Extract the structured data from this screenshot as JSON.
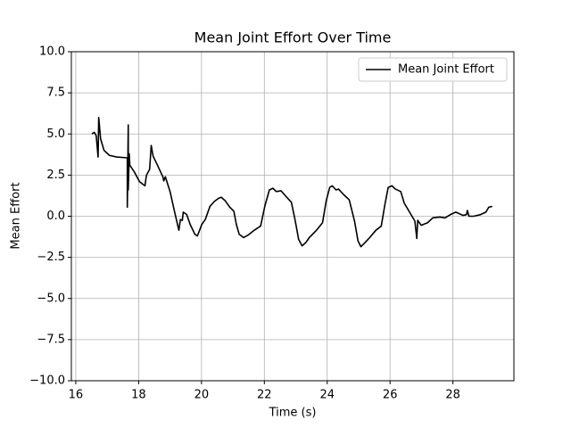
{
  "chart_data": {
    "type": "line",
    "title": "Mean Joint Effort Over Time",
    "xlabel": "Time (s)",
    "ylabel": "Mean Effort",
    "x": [
      16.51,
      16.59,
      16.65,
      16.71,
      16.73,
      16.79,
      16.9,
      17.07,
      17.3,
      17.64,
      17.64,
      17.67,
      17.67,
      17.7,
      17.72,
      17.86,
      18.03,
      18.2,
      18.25,
      18.35,
      18.4,
      18.46,
      18.6,
      18.77,
      18.8,
      18.85,
      19.0,
      19.14,
      19.28,
      19.33,
      19.39,
      19.42,
      19.53,
      19.64,
      19.79,
      19.87,
      20.01,
      20.12,
      20.27,
      20.41,
      20.55,
      20.63,
      20.75,
      20.9,
      21.03,
      21.11,
      21.2,
      21.34,
      21.48,
      21.68,
      21.88,
      22.02,
      22.16,
      22.27,
      22.38,
      22.53,
      22.69,
      22.86,
      22.98,
      23.09,
      23.2,
      23.32,
      23.43,
      23.66,
      23.85,
      23.97,
      24.08,
      24.16,
      24.28,
      24.36,
      24.53,
      24.7,
      24.87,
      24.98,
      25.07,
      25.18,
      25.35,
      25.55,
      25.72,
      25.83,
      25.94,
      26.06,
      26.17,
      26.34,
      26.45,
      26.62,
      26.79,
      26.85,
      26.88,
      26.99,
      27.19,
      27.36,
      27.58,
      27.75,
      27.92,
      28.09,
      28.32,
      28.43,
      28.46,
      28.51,
      28.66,
      28.88,
      29.05,
      29.14,
      29.25
    ],
    "series": [
      {
        "name": "Mean Joint Effort",
        "color": "#000000",
        "values": [
          5.0,
          5.1,
          4.9,
          3.6,
          6.0,
          4.7,
          4.0,
          3.7,
          3.6,
          3.55,
          0.55,
          5.55,
          1.6,
          3.8,
          3.1,
          2.7,
          2.1,
          1.85,
          2.5,
          2.85,
          4.3,
          3.65,
          3.1,
          2.4,
          2.15,
          2.4,
          1.5,
          0.3,
          -0.85,
          -0.2,
          -0.25,
          0.25,
          0.1,
          -0.5,
          -1.1,
          -1.2,
          -0.5,
          -0.2,
          0.6,
          0.9,
          1.1,
          1.15,
          0.95,
          0.55,
          0.3,
          -0.5,
          -1.1,
          -1.3,
          -1.15,
          -0.85,
          -0.6,
          0.65,
          1.6,
          1.7,
          1.5,
          1.55,
          1.2,
          0.85,
          -0.25,
          -1.4,
          -1.8,
          -1.6,
          -1.3,
          -0.85,
          -0.4,
          0.95,
          1.75,
          1.85,
          1.6,
          1.65,
          1.3,
          1.0,
          -0.3,
          -1.5,
          -1.85,
          -1.65,
          -1.3,
          -0.85,
          -0.6,
          0.65,
          1.75,
          1.85,
          1.65,
          1.5,
          0.8,
          0.25,
          -0.3,
          -1.35,
          -0.25,
          -0.55,
          -0.4,
          -0.1,
          -0.05,
          -0.1,
          0.1,
          0.25,
          0.05,
          0.1,
          0.35,
          0.0,
          0.0,
          0.1,
          0.25,
          0.55,
          0.6
        ]
      }
    ],
    "xlim": [
      15.86,
      29.94
    ],
    "xticks": [
      16,
      18,
      20,
      22,
      24,
      26,
      28
    ],
    "ylim": [
      -10,
      10
    ],
    "yticks": [
      {
        "value": -10,
        "label": "−10.0"
      },
      {
        "value": -7.5,
        "label": "−7.5"
      },
      {
        "value": -5,
        "label": "−5.0"
      },
      {
        "value": -2.5,
        "label": "−2.5"
      },
      {
        "value": 0,
        "label": "0.0"
      },
      {
        "value": 2.5,
        "label": "2.5"
      },
      {
        "value": 5,
        "label": "5.0"
      },
      {
        "value": 7.5,
        "label": "7.5"
      },
      {
        "value": 10,
        "label": "10.0"
      }
    ],
    "grid": true,
    "legend": "upper right"
  }
}
